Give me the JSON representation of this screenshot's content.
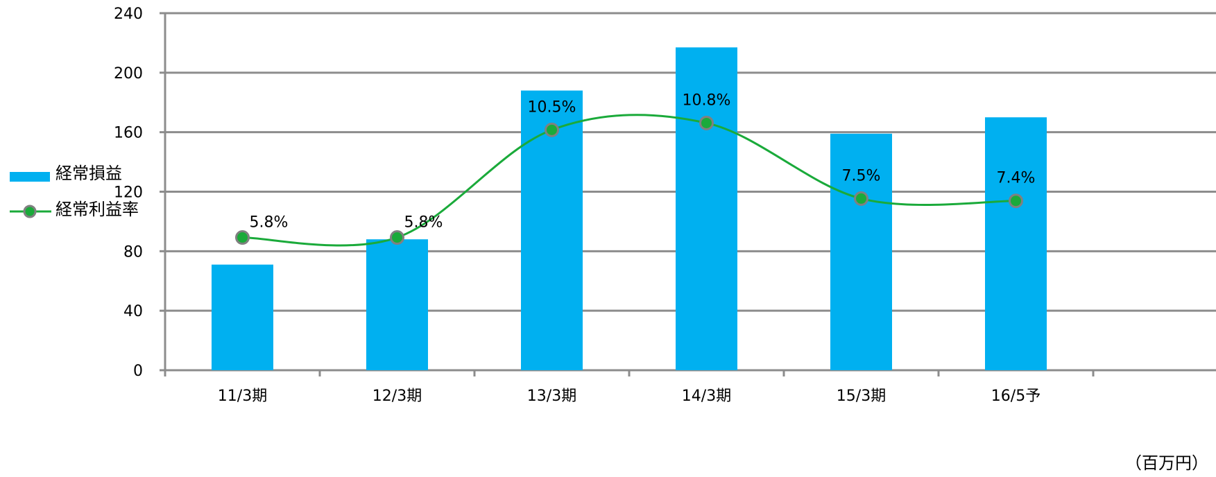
{
  "chart_data": {
    "type": "bar",
    "categories": [
      "11/3期",
      "12/3期",
      "13/3期",
      "14/3期",
      "15/3期",
      "16/5予"
    ],
    "series": [
      {
        "name": "経常損益",
        "type": "bar",
        "axis": "left",
        "values": [
          71,
          88,
          188,
          217,
          159,
          170
        ],
        "color": "#00B0F0"
      },
      {
        "name": "経常利益率",
        "type": "line",
        "smooth": true,
        "values": [
          5.8,
          5.8,
          10.5,
          10.8,
          7.5,
          7.4
        ],
        "labels": [
          "5.8%",
          "5.8%",
          "10.5%",
          "10.8%",
          "7.5%",
          "7.4%"
        ],
        "line_color": "#1AAA3A",
        "marker_color": "#1AAA3A",
        "marker_edge_color": "#808080"
      }
    ],
    "y_ticks": [
      "0",
      "40",
      "80",
      "120",
      "160",
      "200",
      "240"
    ],
    "ylim": [
      0,
      240
    ],
    "grid": true,
    "legend_position": "left",
    "unit_label": "（百万円）",
    "title": "",
    "xlabel": "",
    "ylabel": ""
  }
}
